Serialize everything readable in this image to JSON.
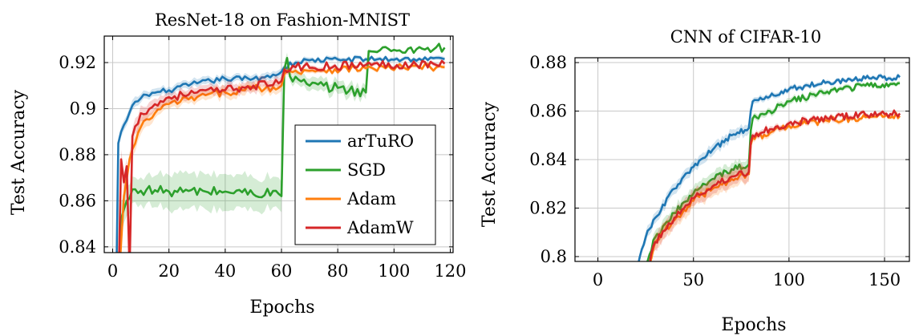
{
  "colors": {
    "arTuRO": "#1f77b4",
    "SGD": "#2ca02c",
    "Adam": "#ff7f0e",
    "AdamW": "#d62728",
    "grid": "#c8c8c8",
    "axis": "#000000"
  },
  "chart_data": [
    {
      "type": "line",
      "title": "ResNet-18 on Fashion-MNIST",
      "xlabel": "Epochs",
      "ylabel": "Test Accuracy",
      "xlim": [
        -3,
        121
      ],
      "ylim": [
        0.8375,
        0.9315
      ],
      "xticks": [
        0,
        20,
        40,
        60,
        80,
        100,
        120
      ],
      "xtick_labels": [
        "0",
        "20",
        "40",
        "60",
        "80",
        "100",
        "120"
      ],
      "yticks": [
        0.84,
        0.86,
        0.88,
        0.9,
        0.92
      ],
      "ytick_labels": [
        "0.84",
        "0.86",
        "0.88",
        "0.9",
        "0.92"
      ],
      "grid": true,
      "legend_position": "lower-right",
      "series": [
        {
          "name": "arTuRO",
          "color_key": "arTuRO",
          "keypoints": [
            [
              1,
              0.8,
              0
            ],
            [
              2,
              0.885,
              0.002
            ],
            [
              3,
              0.89,
              0.002
            ],
            [
              5,
              0.895,
              0.002
            ],
            [
              8,
              0.903,
              0.002
            ],
            [
              12,
              0.906,
              0.0015
            ],
            [
              20,
              0.908,
              0.0015
            ],
            [
              30,
              0.911,
              0.0015
            ],
            [
              40,
              0.913,
              0.0015
            ],
            [
              50,
              0.913,
              0.0015
            ],
            [
              59,
              0.915,
              0.0015
            ],
            [
              60,
              0.916,
              0.0015
            ],
            [
              61,
              0.918,
              0.001
            ],
            [
              65,
              0.92,
              0.001
            ],
            [
              70,
              0.921,
              0.001
            ],
            [
              90,
              0.9215,
              0.0008
            ],
            [
              118,
              0.9215,
              0.0008
            ]
          ],
          "noise": 0.0012
        },
        {
          "name": "SGD",
          "color_key": "SGD",
          "keypoints": [
            [
              1,
              0.8,
              0
            ],
            [
              3,
              0.852,
              0.006
            ],
            [
              5,
              0.86,
              0.006
            ],
            [
              8,
              0.865,
              0.005
            ],
            [
              20,
              0.864,
              0.007
            ],
            [
              40,
              0.864,
              0.007
            ],
            [
              59,
              0.863,
              0.006
            ],
            [
              60,
              0.862,
              0.006
            ],
            [
              61,
              0.917,
              0.003
            ],
            [
              62,
              0.922,
              0.002
            ],
            [
              63,
              0.914,
              0.002
            ],
            [
              70,
              0.91,
              0.0025
            ],
            [
              80,
              0.909,
              0.0025
            ],
            [
              90,
              0.907,
              0.0025
            ],
            [
              91,
              0.925,
              0.0006
            ],
            [
              100,
              0.9255,
              0.0005
            ],
            [
              110,
              0.926,
              0.0005
            ],
            [
              118,
              0.9265,
              0.0005
            ]
          ],
          "noise": 0.0022
        },
        {
          "name": "Adam",
          "color_key": "Adam",
          "keypoints": [
            [
              2,
              0.82,
              0
            ],
            [
              4,
              0.862,
              0.004
            ],
            [
              6,
              0.878,
              0.003
            ],
            [
              10,
              0.892,
              0.003
            ],
            [
              15,
              0.898,
              0.002
            ],
            [
              20,
              0.902,
              0.002
            ],
            [
              30,
              0.905,
              0.002
            ],
            [
              40,
              0.907,
              0.002
            ],
            [
              50,
              0.909,
              0.002
            ],
            [
              59,
              0.909,
              0.002
            ],
            [
              60,
              0.91,
              0.002
            ],
            [
              61,
              0.915,
              0.0012
            ],
            [
              65,
              0.9165,
              0.001
            ],
            [
              90,
              0.9175,
              0.0008
            ],
            [
              118,
              0.918,
              0.0008
            ]
          ],
          "noise": 0.0016
        },
        {
          "name": "AdamW",
          "color_key": "AdamW",
          "keypoints": [
            [
              2,
              0.82,
              0
            ],
            [
              3,
              0.878,
              0.004
            ],
            [
              4,
              0.868,
              0.004
            ],
            [
              5,
              0.875,
              0.003
            ],
            [
              6,
              0.83,
              0.003
            ],
            [
              7,
              0.888,
              0.003
            ],
            [
              10,
              0.898,
              0.003
            ],
            [
              20,
              0.905,
              0.002
            ],
            [
              30,
              0.907,
              0.002
            ],
            [
              40,
              0.908,
              0.002
            ],
            [
              50,
              0.91,
              0.002
            ],
            [
              59,
              0.911,
              0.002
            ],
            [
              60,
              0.912,
              0.002
            ],
            [
              61,
              0.917,
              0.0012
            ],
            [
              65,
              0.918,
              0.001
            ],
            [
              90,
              0.919,
              0.0008
            ],
            [
              118,
              0.9195,
              0.0008
            ]
          ],
          "noise": 0.0018
        }
      ]
    },
    {
      "type": "line",
      "title": "CNN of CIFAR-10",
      "xlabel": "Epochs",
      "ylabel": "Test Accuracy",
      "xlim": [
        -12,
        163
      ],
      "ylim": [
        0.798,
        0.882
      ],
      "xticks": [
        0,
        50,
        100,
        150
      ],
      "xtick_labels": [
        "0",
        "50",
        "100",
        "150"
      ],
      "yticks": [
        0.8,
        0.82,
        0.84,
        0.86,
        0.88
      ],
      "ytick_labels": [
        "0.8",
        "0.82",
        "0.84",
        "0.86",
        "0.88"
      ],
      "grid": true,
      "legend_position": "none",
      "series": [
        {
          "name": "arTuRO",
          "color_key": "arTuRO",
          "keypoints": [
            [
              20,
              0.795,
              0
            ],
            [
              25,
              0.808,
              0.002
            ],
            [
              30,
              0.816,
              0.002
            ],
            [
              40,
              0.828,
              0.002
            ],
            [
              50,
              0.837,
              0.002
            ],
            [
              60,
              0.844,
              0.002
            ],
            [
              70,
              0.85,
              0.002
            ],
            [
              79,
              0.853,
              0.002
            ],
            [
              80,
              0.86,
              0.0015
            ],
            [
              81,
              0.864,
              0.0012
            ],
            [
              90,
              0.866,
              0.001
            ],
            [
              100,
              0.869,
              0.001
            ],
            [
              120,
              0.872,
              0.0008
            ],
            [
              140,
              0.8735,
              0.0008
            ],
            [
              158,
              0.874,
              0.0008
            ]
          ],
          "noise": 0.0011
        },
        {
          "name": "SGD",
          "color_key": "SGD",
          "keypoints": [
            [
              25,
              0.797,
              0
            ],
            [
              30,
              0.808,
              0.0025
            ],
            [
              40,
              0.818,
              0.0025
            ],
            [
              50,
              0.826,
              0.0025
            ],
            [
              60,
              0.832,
              0.0025
            ],
            [
              70,
              0.836,
              0.0025
            ],
            [
              79,
              0.838,
              0.0025
            ],
            [
              80,
              0.852,
              0.0015
            ],
            [
              81,
              0.857,
              0.0012
            ],
            [
              90,
              0.86,
              0.0012
            ],
            [
              100,
              0.864,
              0.0012
            ],
            [
              120,
              0.868,
              0.001
            ],
            [
              140,
              0.8705,
              0.0008
            ],
            [
              158,
              0.8715,
              0.0008
            ]
          ],
          "noise": 0.0013
        },
        {
          "name": "Adam",
          "color_key": "Adam",
          "keypoints": [
            [
              26,
              0.795,
              0
            ],
            [
              30,
              0.806,
              0.003
            ],
            [
              40,
              0.815,
              0.003
            ],
            [
              50,
              0.823,
              0.003
            ],
            [
              60,
              0.828,
              0.003
            ],
            [
              70,
              0.832,
              0.003
            ],
            [
              79,
              0.834,
              0.003
            ],
            [
              80,
              0.846,
              0.0015
            ],
            [
              81,
              0.849,
              0.0012
            ],
            [
              90,
              0.851,
              0.0012
            ],
            [
              100,
              0.854,
              0.001
            ],
            [
              120,
              0.856,
              0.001
            ],
            [
              140,
              0.8575,
              0.0008
            ],
            [
              158,
              0.858,
              0.0008
            ]
          ],
          "noise": 0.0014
        },
        {
          "name": "AdamW",
          "color_key": "AdamW",
          "keypoints": [
            [
              26,
              0.795,
              0
            ],
            [
              30,
              0.806,
              0.003
            ],
            [
              40,
              0.816,
              0.003
            ],
            [
              50,
              0.824,
              0.003
            ],
            [
              60,
              0.829,
              0.003
            ],
            [
              70,
              0.833,
              0.003
            ],
            [
              79,
              0.835,
              0.003
            ],
            [
              80,
              0.847,
              0.0015
            ],
            [
              81,
              0.85,
              0.0012
            ],
            [
              90,
              0.8525,
              0.0012
            ],
            [
              100,
              0.855,
              0.001
            ],
            [
              120,
              0.857,
              0.001
            ],
            [
              140,
              0.8585,
              0.0008
            ],
            [
              158,
              0.859,
              0.0008
            ]
          ],
          "noise": 0.0014
        }
      ]
    }
  ]
}
